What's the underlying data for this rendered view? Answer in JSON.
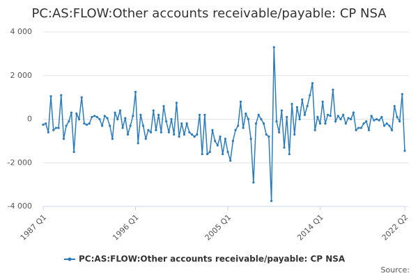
{
  "chart_data": {
    "type": "line",
    "title": "PC:AS:FLOW:Other accounts receivable/payable: CP NSA",
    "source": "Source:",
    "categories": [
      "1987 Q1",
      null,
      null,
      null,
      null,
      null,
      null,
      null,
      null,
      null,
      null,
      null,
      null,
      null,
      null,
      null,
      null,
      null,
      null,
      null,
      null,
      null,
      null,
      null,
      null,
      null,
      null,
      null,
      null,
      null,
      null,
      null,
      null,
      null,
      null,
      null,
      "1996 Q1",
      null,
      null,
      null,
      null,
      null,
      null,
      null,
      null,
      null,
      null,
      null,
      null,
      null,
      null,
      null,
      null,
      null,
      null,
      null,
      null,
      null,
      null,
      null,
      null,
      null,
      null,
      null,
      null,
      null,
      null,
      null,
      null,
      null,
      null,
      null,
      "2005 Q1",
      null,
      null,
      null,
      null,
      null,
      null,
      null,
      null,
      null,
      null,
      null,
      null,
      null,
      null,
      null,
      null,
      null,
      null,
      null,
      null,
      null,
      null,
      null,
      null,
      null,
      null,
      null,
      null,
      null,
      null,
      null,
      null,
      null,
      null,
      null,
      "2014 Q1",
      null,
      null,
      null,
      null,
      null,
      null,
      null,
      null,
      null,
      null,
      null,
      null,
      null,
      null,
      null,
      null,
      null,
      null,
      null,
      null,
      null,
      null,
      null,
      null,
      null,
      null,
      null,
      null,
      null,
      null,
      null,
      null,
      "2022 Q2"
    ],
    "series": [
      {
        "name": "PC:AS:FLOW:Other accounts receivable/payable: CP NSA",
        "color": "#2b7bba",
        "values": [
          -250,
          -200,
          -600,
          1050,
          -500,
          -400,
          -400,
          1100,
          -900,
          -300,
          -100,
          300,
          -1500,
          250,
          0,
          1000,
          -200,
          -250,
          -200,
          100,
          150,
          100,
          0,
          -300,
          150,
          50,
          -300,
          -900,
          300,
          0,
          400,
          -400,
          50,
          -700,
          -300,
          150,
          1250,
          -1100,
          200,
          -300,
          -900,
          -500,
          -600,
          400,
          -500,
          200,
          -600,
          600,
          -100,
          -600,
          0,
          -700,
          750,
          -800,
          -200,
          -700,
          -200,
          -600,
          -700,
          -800,
          -700,
          200,
          -1600,
          200,
          -1600,
          -1500,
          -500,
          -1000,
          -1200,
          -800,
          -1600,
          -900,
          -1500,
          -1900,
          -1000,
          -500,
          -300,
          800,
          -400,
          250,
          0,
          -900,
          -2900,
          -200,
          200,
          0,
          -200,
          -700,
          -800,
          -3750,
          3300,
          -100,
          -600,
          400,
          -1300,
          100,
          -1600,
          700,
          -700,
          550,
          0,
          900,
          200,
          600,
          1100,
          1650,
          -500,
          100,
          -200,
          800,
          -200,
          200,
          150,
          1350,
          -100,
          150,
          0,
          200,
          -200,
          50,
          0,
          300,
          -500,
          -400,
          -400,
          -200,
          -100,
          -500,
          150,
          -50,
          0,
          -50,
          100,
          -300,
          -200,
          -300,
          -500,
          600,
          100,
          -100,
          1150,
          -1450
        ]
      }
    ],
    "ylim": [
      -4000,
      4000
    ],
    "yticks": [
      {
        "value": -4000,
        "label": "-4 000"
      },
      {
        "value": -2000,
        "label": "-2 000"
      },
      0,
      {
        "value": 2000,
        "label": "2 000"
      },
      {
        "value": 4000,
        "label": "4 000"
      }
    ],
    "grid": true,
    "legend": "bottom"
  }
}
